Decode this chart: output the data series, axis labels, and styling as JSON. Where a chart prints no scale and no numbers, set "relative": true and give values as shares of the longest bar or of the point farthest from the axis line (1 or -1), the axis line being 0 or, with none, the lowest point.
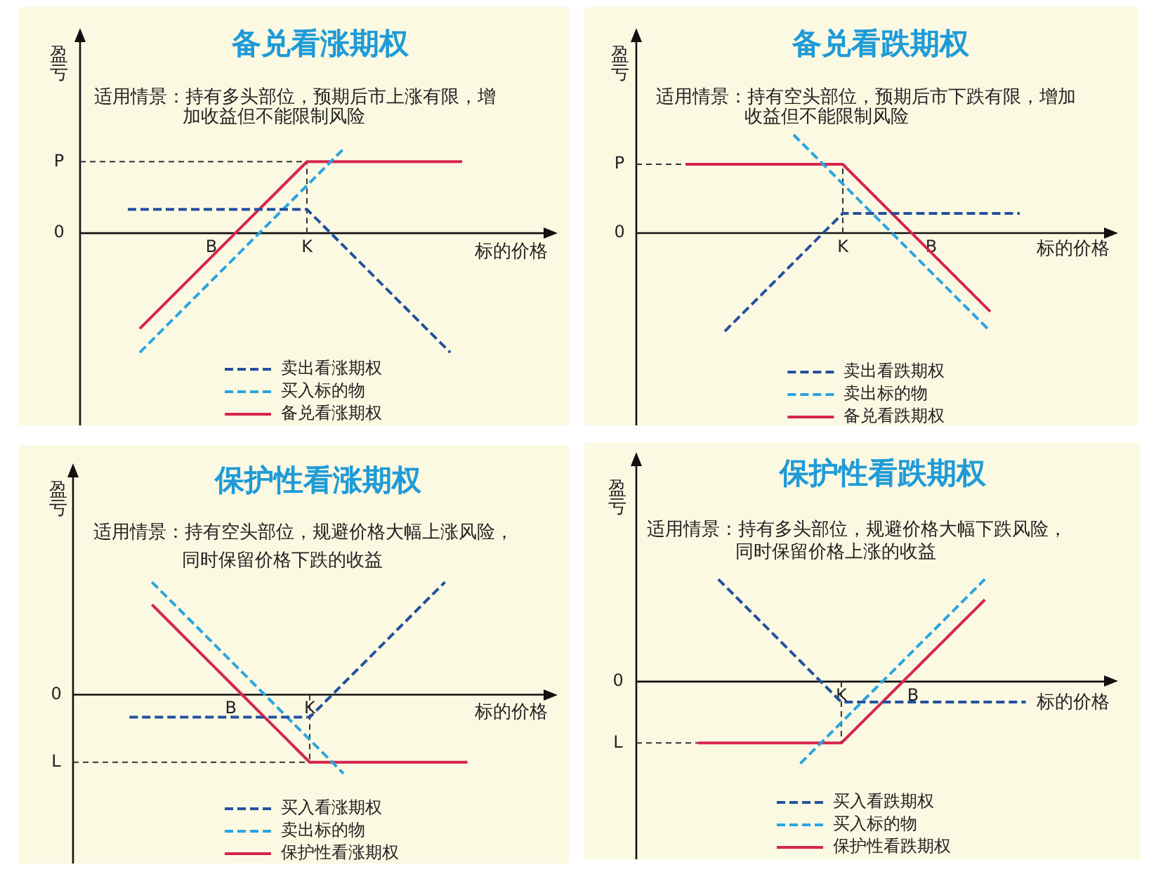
{
  "chart_data": [
    {
      "type": "line",
      "title": "备兑看涨期权",
      "subtitle": "适用情景：持有多头部位，预期后市上涨有限，增加收益但不能限制风险",
      "xlabel": "标的价格",
      "ylabel": "盈亏",
      "relative": true,
      "legend": "bottom",
      "marker": "none",
      "categories": [
        null,
        null,
        null,
        null,
        null,
        null,
        null,
        null,
        null,
        null,
        null,
        "B",
        null,
        null,
        null,
        null,
        null,
        null,
        null,
        "K",
        null,
        null,
        null,
        null,
        null,
        null,
        null,
        null,
        null,
        null,
        null,
        null,
        null,
        null,
        null,
        null,
        null,
        null,
        null,
        null,
        null
      ],
      "series": [
        {
          "name": "卖出看涨期权",
          "color": "#24519e",
          "line_style": "dashed",
          "values": [
            null,
            null,
            null,
            null,
            0.2,
            0.2,
            0.2,
            0.2,
            0.2,
            0.2,
            0.2,
            0.2,
            0.2,
            0.2,
            0.2,
            0.2,
            0.2,
            0.2,
            0.2,
            0.2,
            0.1,
            0,
            -0.1,
            -0.2,
            -0.3,
            -0.4,
            -0.5,
            -0.6,
            -0.7,
            -0.8,
            -0.9,
            -1,
            null,
            null,
            null,
            null,
            null,
            null,
            null,
            null,
            null
          ]
        },
        {
          "name": "买入标的物",
          "color": "#2aa5df",
          "line_style": "dashed",
          "values": [
            null,
            null,
            null,
            null,
            null,
            -1,
            -0.9,
            -0.8,
            -0.7,
            -0.6,
            -0.5,
            -0.4,
            -0.3,
            -0.2,
            -0.1,
            0,
            0.1,
            0.2,
            0.3,
            0.4,
            0.5,
            0.6,
            0.7,
            null,
            null,
            null,
            null,
            null,
            null,
            null,
            null,
            null,
            null,
            null,
            null,
            null,
            null,
            null,
            null,
            null,
            null
          ]
        },
        {
          "name": "备兑看涨期权",
          "color": "#d6254e",
          "line_style": "solid",
          "values": [
            null,
            null,
            null,
            null,
            null,
            -0.8,
            -0.7,
            -0.6,
            -0.5,
            -0.4,
            -0.3,
            -0.2,
            -0.1,
            0,
            0.1,
            0.2,
            0.3,
            0.4,
            0.5,
            0.6,
            0.6,
            0.6,
            0.6,
            0.6,
            0.6,
            0.6,
            0.6,
            0.6,
            0.6,
            0.6,
            0.6,
            0.6,
            0.6,
            null,
            null,
            null,
            null,
            null,
            null,
            null,
            null
          ]
        }
      ],
      "ref_lines": [
        {
          "axis": "y",
          "value": 0.6,
          "label": "P",
          "color": "#333333",
          "line_style": "dashed"
        },
        {
          "axis": "x",
          "value": "K",
          "color": "#333333",
          "line_style": "dashed"
        }
      ],
      "annotations": [
        "0"
      ]
    },
    {
      "type": "line",
      "title": "备兑看跌期权",
      "subtitle": "适用情景：持有空头部位，预期后市下跌有限，增加收益但不能限制风险",
      "xlabel": "标的价格",
      "ylabel": "盈亏",
      "relative": true,
      "legend": "bottom",
      "marker": "none",
      "categories": [
        null,
        null,
        null,
        null,
        null,
        null,
        null,
        null,
        null,
        null,
        null,
        null,
        null,
        null,
        null,
        null,
        null,
        null,
        null,
        null,
        null,
        "K",
        null,
        null,
        null,
        null,
        null,
        null,
        null,
        null,
        "B",
        null,
        null,
        null,
        null,
        null,
        null,
        null,
        null,
        null,
        null,
        null,
        null,
        null,
        null,
        null,
        null,
        null,
        null,
        null
      ],
      "series": [
        {
          "name": "卖出看跌期权",
          "color": "#24519e",
          "line_style": "dashed",
          "values": [
            null,
            null,
            null,
            null,
            null,
            null,
            null,
            null,
            null,
            -1,
            -0.9,
            -0.8,
            -0.7,
            -0.6,
            -0.5,
            -0.4,
            -0.3,
            -0.2,
            -0.1,
            0,
            0.1,
            0.2,
            0.2,
            0.2,
            0.2,
            0.2,
            0.2,
            0.2,
            0.2,
            0.2,
            0.2,
            0.2,
            0.2,
            0.2,
            0.2,
            0.2,
            0.2,
            0.2,
            0.2,
            0.2,
            null,
            null,
            null,
            null,
            null,
            null,
            null,
            null,
            null,
            null
          ]
        },
        {
          "name": "卖出标的物",
          "color": "#2aa5df",
          "line_style": "dashed",
          "values": [
            null,
            null,
            null,
            null,
            null,
            null,
            null,
            null,
            null,
            null,
            null,
            null,
            null,
            null,
            null,
            null,
            1,
            0.9,
            0.8,
            0.7,
            0.6,
            0.5,
            0.4,
            0.3,
            0.2,
            0.1,
            0,
            -0.1,
            -0.2,
            -0.3,
            -0.4,
            -0.5,
            -0.6,
            -0.7,
            -0.8,
            -0.9,
            -1,
            null,
            null,
            null,
            null,
            null,
            null,
            null,
            null,
            null,
            null,
            null,
            null,
            null
          ]
        },
        {
          "name": "备兑看跌期权",
          "color": "#d6254e",
          "line_style": "solid",
          "values": [
            null,
            null,
            null,
            null,
            null,
            0.7,
            0.7,
            0.7,
            0.7,
            0.7,
            0.7,
            0.7,
            0.7,
            0.7,
            0.7,
            0.7,
            0.7,
            0.7,
            0.7,
            0.7,
            0.7,
            0.7,
            0.6,
            0.5,
            0.4,
            0.3,
            0.2,
            0.1,
            0,
            -0.1,
            -0.2,
            -0.3,
            -0.4,
            -0.5,
            -0.6,
            -0.7,
            -0.8,
            null,
            null,
            null,
            null,
            null,
            null,
            null,
            null,
            null,
            null,
            null,
            null,
            null
          ]
        }
      ],
      "ref_lines": [
        {
          "axis": "y",
          "value": 0.7,
          "label": "P",
          "color": "#333333",
          "line_style": "dashed"
        },
        {
          "axis": "x",
          "value": "K",
          "color": "#333333",
          "line_style": "dashed"
        }
      ],
      "annotations": [
        "0"
      ]
    },
    {
      "type": "line",
      "title": "保护性看涨期权",
      "subtitle": "适用情景：持有空头部位，规避价格大幅上涨风险，同时保留价格下跌的收益",
      "xlabel": "标的价格",
      "ylabel": "盈亏",
      "relative": true,
      "legend": "bottom",
      "marker": "none",
      "categories": [
        null,
        null,
        null,
        null,
        null,
        null,
        null,
        null,
        null,
        null,
        null,
        null,
        null,
        null,
        "B",
        null,
        null,
        null,
        null,
        null,
        null,
        "K",
        null,
        null,
        null,
        null,
        null,
        null,
        null,
        null,
        null,
        null,
        null,
        null,
        null,
        null,
        null,
        null,
        null,
        null,
        null,
        null,
        null,
        null
      ],
      "series": [
        {
          "name": "买入看涨期权",
          "color": "#24519e",
          "line_style": "dashed",
          "values": [
            null,
            null,
            null,
            null,
            null,
            -0.2,
            -0.2,
            -0.2,
            -0.2,
            -0.2,
            -0.2,
            -0.2,
            -0.2,
            -0.2,
            -0.2,
            -0.2,
            -0.2,
            -0.2,
            -0.2,
            -0.2,
            -0.2,
            -0.2,
            -0.1,
            0,
            0.1,
            0.2,
            0.3,
            0.4,
            0.5,
            0.6,
            0.7,
            0.8,
            0.9,
            1,
            null,
            null,
            null,
            null,
            null,
            null,
            null,
            null,
            null,
            null
          ]
        },
        {
          "name": "卖出标的物",
          "color": "#2aa5df",
          "line_style": "dashed",
          "values": [
            null,
            null,
            null,
            null,
            null,
            null,
            null,
            1,
            0.9,
            0.8,
            0.7,
            0.6,
            0.5,
            0.4,
            0.3,
            0.2,
            0.1,
            0,
            -0.1,
            -0.2,
            -0.3,
            -0.4,
            -0.5,
            -0.6,
            -0.7,
            null,
            null,
            null,
            null,
            null,
            null,
            null,
            null,
            null,
            null,
            null,
            null,
            null,
            null,
            null,
            null,
            null,
            null,
            null
          ]
        },
        {
          "name": "保护性看涨期权",
          "color": "#d6254e",
          "line_style": "solid",
          "values": [
            null,
            null,
            null,
            null,
            null,
            null,
            null,
            0.8,
            0.7,
            0.6,
            0.5,
            0.4,
            0.3,
            0.2,
            0.1,
            0,
            -0.1,
            -0.2,
            -0.3,
            -0.4,
            -0.5,
            -0.6,
            -0.6,
            -0.6,
            -0.6,
            -0.6,
            -0.6,
            -0.6,
            -0.6,
            -0.6,
            -0.6,
            -0.6,
            -0.6,
            -0.6,
            -0.6,
            -0.6,
            null,
            null,
            null,
            null,
            null,
            null,
            null,
            null
          ]
        }
      ],
      "ref_lines": [
        {
          "axis": "y",
          "value": -0.6,
          "label": "L",
          "color": "#333333",
          "line_style": "dashed"
        },
        {
          "axis": "x",
          "value": "K",
          "color": "#333333",
          "line_style": "dashed"
        }
      ],
      "annotations": [
        "0"
      ]
    },
    {
      "type": "line",
      "title": "保护性看跌期权",
      "subtitle": "适用情景：持有多头部位，规避价格大幅下跌风险，同时保留价格上涨的收益",
      "xlabel": "标的价格",
      "ylabel": "盈亏",
      "relative": true,
      "legend": "bottom",
      "marker": "none",
      "categories": [
        null,
        null,
        null,
        null,
        null,
        null,
        null,
        null,
        null,
        null,
        null,
        null,
        null,
        null,
        null,
        null,
        null,
        null,
        null,
        null,
        "K",
        null,
        null,
        null,
        null,
        null,
        null,
        "B",
        null,
        null,
        null,
        null,
        null,
        null,
        null,
        null,
        null,
        null,
        null,
        null,
        null,
        null,
        null,
        null,
        null,
        null,
        null,
        null
      ],
      "series": [
        {
          "name": "买入看跌期权",
          "color": "#24519e",
          "line_style": "dashed",
          "values": [
            null,
            null,
            null,
            null,
            null,
            null,
            null,
            null,
            1,
            0.9,
            0.8,
            0.7,
            0.6,
            0.5,
            0.4,
            0.3,
            0.2,
            0.1,
            0,
            -0.1,
            -0.2,
            -0.2,
            -0.2,
            -0.2,
            -0.2,
            -0.2,
            -0.2,
            -0.2,
            -0.2,
            -0.2,
            -0.2,
            -0.2,
            -0.2,
            -0.2,
            -0.2,
            -0.2,
            -0.2,
            -0.2,
            -0.2,
            null,
            null,
            null,
            null,
            null,
            null,
            null,
            null,
            null
          ]
        },
        {
          "name": "买入标的物",
          "color": "#2aa5df",
          "line_style": "dashed",
          "values": [
            null,
            null,
            null,
            null,
            null,
            null,
            null,
            null,
            null,
            null,
            null,
            null,
            null,
            null,
            null,
            null,
            -0.8,
            -0.7,
            -0.6,
            -0.5,
            -0.4,
            -0.3,
            -0.2,
            -0.1,
            0,
            0.1,
            0.2,
            0.3,
            0.4,
            0.5,
            0.6,
            0.7,
            0.8,
            0.9,
            1,
            null,
            null,
            null,
            null,
            null,
            null,
            null,
            null,
            null,
            null,
            null,
            null,
            null
          ]
        },
        {
          "name": "保护性看跌期权",
          "color": "#d6254e",
          "line_style": "solid",
          "values": [
            null,
            null,
            null,
            null,
            null,
            null,
            -0.6,
            -0.6,
            -0.6,
            -0.6,
            -0.6,
            -0.6,
            -0.6,
            -0.6,
            -0.6,
            -0.6,
            -0.6,
            -0.6,
            -0.6,
            -0.6,
            -0.6,
            -0.5,
            -0.4,
            -0.3,
            -0.2,
            -0.1,
            0,
            0.1,
            0.2,
            0.3,
            0.4,
            0.5,
            0.6,
            0.7,
            0.8,
            null,
            null,
            null,
            null,
            null,
            null,
            null,
            null,
            null,
            null,
            null,
            null,
            null
          ]
        }
      ],
      "ref_lines": [
        {
          "axis": "y",
          "value": -0.6,
          "label": "L",
          "color": "#333333",
          "line_style": "dashed"
        },
        {
          "axis": "x",
          "value": "K",
          "color": "#333333",
          "line_style": "dashed"
        }
      ],
      "annotations": [
        "0"
      ]
    }
  ]
}
